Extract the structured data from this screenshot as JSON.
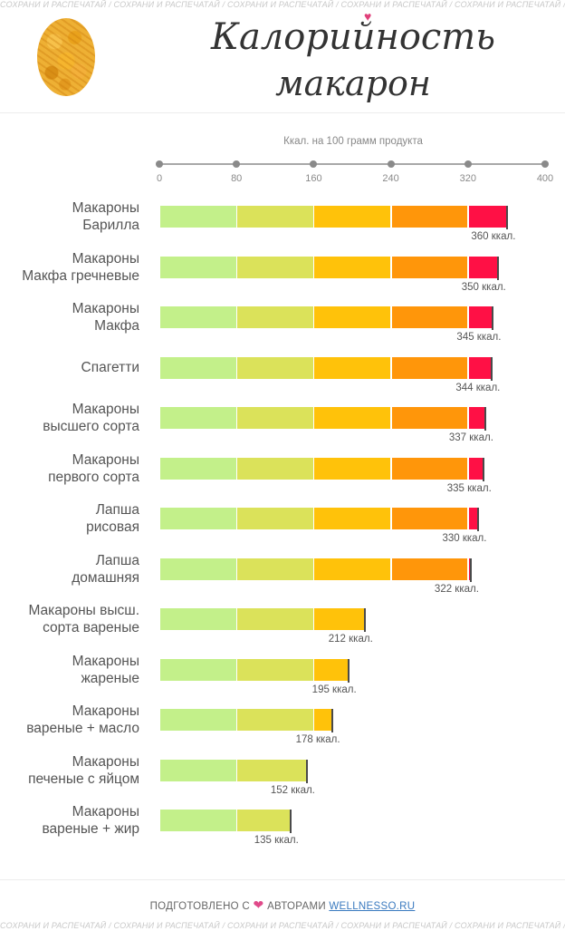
{
  "watermark": "СОХРАНИ И РАСПЕЧАТАЙ",
  "title_line1": "Калорийность",
  "title_line2": "макарон",
  "chart_data": {
    "type": "bar",
    "orientation": "horizontal",
    "title": "Калорийность макарон",
    "xlabel": "Ккал. на 100 грамм продукта",
    "xlim": [
      0,
      400
    ],
    "ticks": [
      0,
      80,
      160,
      240,
      320,
      400
    ],
    "color_bands": [
      {
        "to": 80,
        "color": "#c3f08a"
      },
      {
        "to": 160,
        "color": "#dbe25a"
      },
      {
        "to": 240,
        "color": "#ffc20a"
      },
      {
        "to": 320,
        "color": "#ff960a"
      },
      {
        "to": 400,
        "color": "#ff1045"
      }
    ],
    "value_suffix": " ккал.",
    "categories": [
      [
        "Макароны",
        "Барилла"
      ],
      [
        "Макароны",
        "Макфа гречневые"
      ],
      [
        "Макароны",
        "Макфа"
      ],
      [
        "Спагетти"
      ],
      [
        "Макароны",
        "высшего сорта"
      ],
      [
        "Макароны",
        "первого сорта"
      ],
      [
        "Лапша",
        "рисовая"
      ],
      [
        "Лапша",
        "домашняя"
      ],
      [
        "Макароны высш.",
        "сорта вареные"
      ],
      [
        "Макароны",
        "жареные"
      ],
      [
        "Макароны",
        "вареные + масло"
      ],
      [
        "Макароны",
        "печеные с яйцом"
      ],
      [
        "Макароны",
        "вареные + жир"
      ]
    ],
    "values": [
      360,
      350,
      345,
      344,
      337,
      335,
      330,
      322,
      212,
      195,
      178,
      152,
      135
    ]
  },
  "footer": {
    "prefix": "ПОДГОТОВЛЕНО С",
    "middle": "АВТОРАМИ",
    "link_text": "WELLNESSO.RU",
    "heart": "❤"
  }
}
